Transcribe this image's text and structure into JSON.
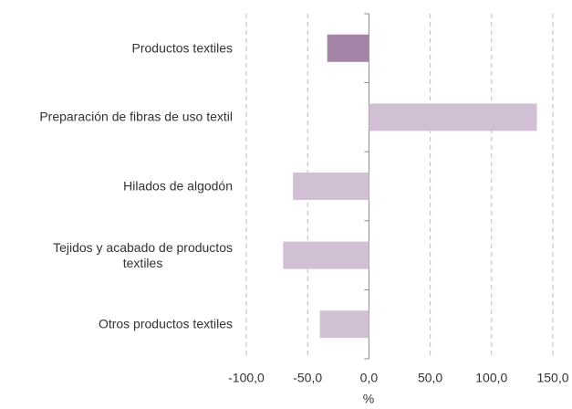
{
  "chart_data": {
    "type": "hbar",
    "categories": [
      "Productos textiles",
      "Preparación de fibras de uso textil",
      "Hilados de algodón",
      "Tejidos y acabado de productos\ntextiles",
      "Otros productos textiles"
    ],
    "values": [
      -34,
      137,
      -62,
      -70,
      -40
    ],
    "colors": [
      "#a484a6",
      "#d1c0d4",
      "#d1c0d4",
      "#d1c0d4",
      "#d1c0d4"
    ],
    "xlabel": "%",
    "xlim": [
      -100,
      150
    ],
    "xticks": [
      {
        "value": -100,
        "label": "-100,0"
      },
      {
        "value": -50,
        "label": "-50,0"
      },
      {
        "value": 0,
        "label": "0,0"
      },
      {
        "value": 50,
        "label": "50,0"
      },
      {
        "value": 100,
        "label": "100,0"
      },
      {
        "value": 150,
        "label": "150,0"
      }
    ],
    "grid": true
  }
}
